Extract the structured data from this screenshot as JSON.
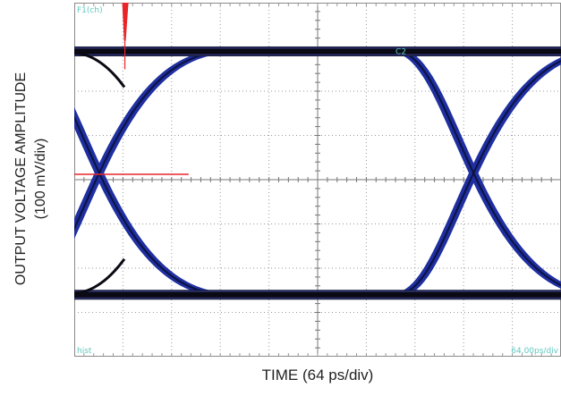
{
  "chart_data": {
    "type": "eye-diagram",
    "xlabel": "TIME (64 ps/div)",
    "ylabel_lines": [
      "OUTPUT VOLTAGE AMPLITUDE",
      "(100 mV/div)"
    ],
    "divisions": {
      "x": 10,
      "y": 8
    },
    "x_per_div_ps": 64,
    "y_per_div_mV": 100,
    "logic_high_div": 2.9,
    "logic_low_div": -2.6,
    "crossing_level_div": 0,
    "crossings_div": [
      -3.96,
      3.73
    ],
    "transition_width_div": 4.2,
    "scope_annotations": {
      "top_left": "F1(ch)",
      "top_right": "C2",
      "bottom_left": "hist",
      "bottom_right": "64.00ps/div"
    },
    "colors": {
      "background": "#ffffff",
      "trace_edge": "#1f2fa0",
      "trace_rail": "#0a0a14",
      "marker": "#e8262a",
      "grid": "#9a9a9a",
      "annotation": "#5fc8c0"
    }
  }
}
